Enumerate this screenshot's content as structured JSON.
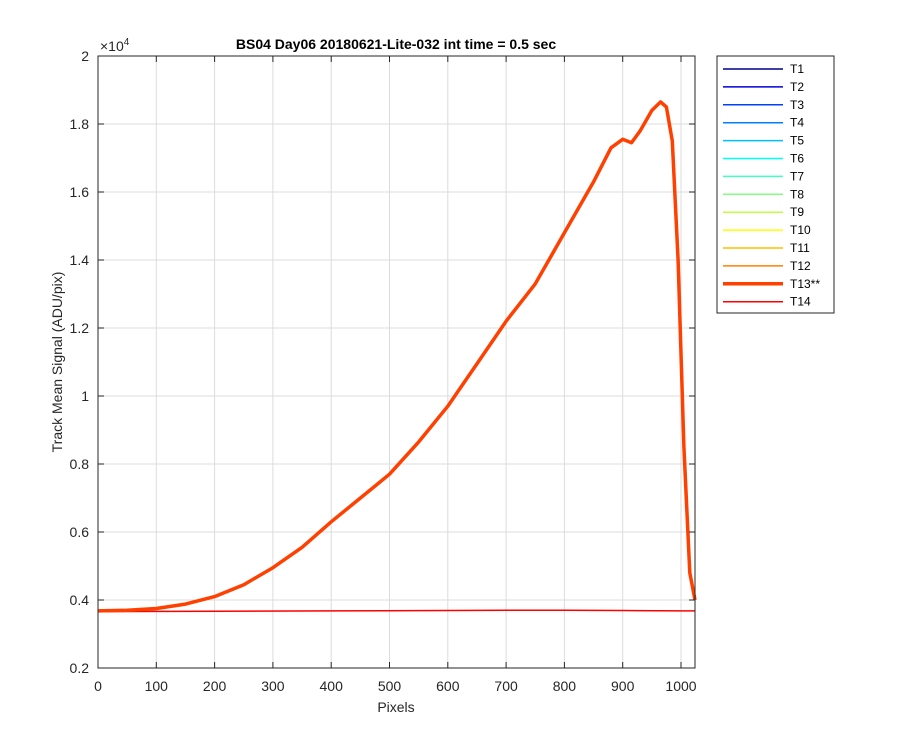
{
  "chart_data": {
    "type": "line",
    "title": "BS04 Day06 20180621-Lite-032 int time = 0.5 sec",
    "xlabel": "Pixels",
    "ylabel": "Track Mean Signal (ADU/pix)",
    "y_multiplier_label": "×10",
    "y_multiplier_exp": "4",
    "xlim": [
      0,
      1024
    ],
    "ylim": [
      0.2,
      2.0
    ],
    "xticks": [
      0,
      100,
      200,
      300,
      400,
      500,
      600,
      700,
      800,
      900,
      1000
    ],
    "yticks": [
      0.2,
      0.4,
      0.6,
      0.8,
      1.0,
      1.2,
      1.4,
      1.6,
      1.8,
      2.0
    ],
    "ytick_labels": [
      "0.2",
      "0.4",
      "0.6",
      "0.8",
      "1",
      "1.2",
      "1.4",
      "1.6",
      "1.8",
      "2"
    ],
    "grid": true,
    "legend_position": "outside-right",
    "series": [
      {
        "name": "T1",
        "color": "#00008f",
        "width": 1.5
      },
      {
        "name": "T2",
        "color": "#0000d9",
        "width": 1.5
      },
      {
        "name": "T3",
        "color": "#0040ff",
        "width": 1.5
      },
      {
        "name": "T4",
        "color": "#0080ff",
        "width": 1.5
      },
      {
        "name": "T5",
        "color": "#00bfff",
        "width": 1.5
      },
      {
        "name": "T6",
        "color": "#00ffff",
        "width": 1.5
      },
      {
        "name": "T7",
        "color": "#40ffbf",
        "width": 1.5
      },
      {
        "name": "T8",
        "color": "#80ff80",
        "width": 1.5
      },
      {
        "name": "T9",
        "color": "#bfff40",
        "width": 1.5
      },
      {
        "name": "T10",
        "color": "#ffff00",
        "width": 1.5
      },
      {
        "name": "T11",
        "color": "#ffbf00",
        "width": 1.5
      },
      {
        "name": "T12",
        "color": "#ff8000",
        "width": 1.5
      },
      {
        "name": "T13**",
        "color": "#ff4000",
        "width": 3.5,
        "x": [
          0,
          50,
          100,
          150,
          200,
          250,
          300,
          350,
          400,
          450,
          500,
          550,
          600,
          650,
          700,
          750,
          800,
          850,
          880,
          900,
          915,
          930,
          950,
          965,
          975,
          985,
          995,
          1005,
          1015,
          1024
        ],
        "y": [
          0.368,
          0.37,
          0.375,
          0.388,
          0.41,
          0.445,
          0.495,
          0.555,
          0.63,
          0.7,
          0.77,
          0.865,
          0.97,
          1.095,
          1.22,
          1.33,
          1.48,
          1.63,
          1.73,
          1.755,
          1.745,
          1.78,
          1.84,
          1.865,
          1.85,
          1.75,
          1.4,
          0.85,
          0.48,
          0.4
        ]
      },
      {
        "name": "T14",
        "color": "#ff0000",
        "width": 1.5,
        "x": [
          0,
          200,
          400,
          600,
          700,
          800,
          900,
          1000,
          1024
        ],
        "y": [
          0.366,
          0.367,
          0.368,
          0.369,
          0.37,
          0.37,
          0.369,
          0.368,
          0.368
        ]
      }
    ]
  }
}
